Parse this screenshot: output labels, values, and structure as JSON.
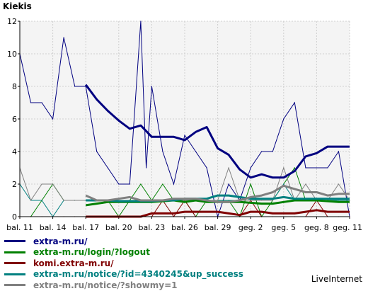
{
  "chart_data": {
    "type": "line",
    "title": "Kiekis",
    "xlabel": "",
    "ylabel": "",
    "ylim": [
      0,
      12
    ],
    "yticks": [
      0,
      2,
      4,
      6,
      8,
      10,
      12
    ],
    "grid": true,
    "legend_position": "bottom-left",
    "x_tick_labels": [
      "bal. 11",
      "bal. 14",
      "bal. 17",
      "bal. 20",
      "bal. 23",
      "bal. 26",
      "bal. 29",
      "geg. 2",
      "geg. 5",
      "geg. 8",
      "geg. 11"
    ],
    "x_tick_days": [
      0,
      3,
      6,
      9,
      12,
      15,
      18,
      21,
      24,
      27,
      30
    ],
    "series": [
      {
        "name": "extra-m.ru/",
        "color": "#000080",
        "daily_x": [
          0,
          1,
          2,
          3,
          4,
          5,
          6,
          7,
          8,
          9,
          10,
          11,
          11.5,
          12,
          13,
          14,
          15,
          16,
          17,
          18,
          19,
          20,
          21,
          22,
          23,
          24,
          25,
          26,
          27,
          28,
          29,
          30
        ],
        "daily_y": [
          10,
          7,
          7,
          6,
          11,
          8,
          8,
          4,
          3,
          2,
          2,
          12,
          3,
          8,
          4,
          2,
          5,
          4,
          3,
          0,
          2,
          1,
          3,
          4,
          4,
          6,
          7,
          3,
          3,
          3,
          4,
          0
        ],
        "smooth_x": [
          6,
          7,
          8,
          9,
          10,
          11,
          12,
          13,
          14,
          15,
          16,
          17,
          18,
          19,
          20,
          21,
          22,
          23,
          24,
          25,
          26,
          27,
          28,
          29,
          30
        ],
        "smooth_y": [
          8.1,
          7.2,
          6.5,
          5.9,
          5.4,
          5.6,
          4.9,
          4.9,
          4.9,
          4.7,
          5.2,
          5.5,
          4.2,
          3.8,
          2.9,
          2.4,
          2.6,
          2.4,
          2.4,
          2.8,
          3.7,
          3.9,
          4.3,
          4.3,
          4.3
        ]
      },
      {
        "name": "extra-m.ru/login/?logout",
        "color": "#008000",
        "daily_x": [
          0,
          1,
          2,
          3,
          4,
          5,
          6,
          7,
          8,
          9,
          10,
          11,
          12,
          13,
          14,
          15,
          16,
          17,
          18,
          19,
          20,
          21,
          22,
          23,
          24,
          25,
          26,
          27,
          28,
          29,
          30
        ],
        "daily_y": [
          0,
          0,
          1,
          2,
          1,
          1,
          1,
          1,
          1,
          0,
          1,
          2,
          1,
          2,
          1,
          1,
          0,
          1,
          1,
          1,
          0,
          2,
          0,
          1,
          2,
          3,
          1,
          1,
          1,
          1,
          1
        ],
        "smooth_x": [
          6,
          7,
          8,
          9,
          10,
          11,
          12,
          13,
          14,
          15,
          16,
          17,
          18,
          19,
          20,
          21,
          22,
          23,
          24,
          25,
          26,
          27,
          28,
          29,
          30
        ],
        "smooth_y": [
          0.7,
          0.8,
          0.9,
          0.9,
          0.9,
          0.9,
          0.9,
          0.95,
          1.0,
          0.9,
          1.0,
          0.9,
          0.9,
          0.9,
          0.9,
          0.85,
          0.8,
          0.8,
          0.9,
          1.0,
          1.0,
          1.0,
          0.95,
          0.9,
          0.9
        ]
      },
      {
        "name": "komi.extra-m.ru/",
        "color": "#800000",
        "daily_x": [
          0,
          1,
          2,
          3,
          4,
          5,
          6,
          7,
          8,
          9,
          10,
          11,
          12,
          13,
          14,
          15,
          16,
          17,
          18,
          19,
          20,
          21,
          22,
          23,
          24,
          25,
          26,
          27,
          28,
          29,
          30
        ],
        "daily_y": [
          0,
          0,
          0,
          0,
          0,
          0,
          0,
          0,
          0,
          0,
          0,
          0,
          0,
          1,
          0,
          1,
          0,
          0,
          0,
          0,
          0,
          1,
          0,
          0,
          0,
          0,
          0,
          1,
          0,
          0,
          0
        ],
        "smooth_x": [
          6,
          7,
          8,
          9,
          10,
          11,
          12,
          13,
          14,
          15,
          16,
          17,
          18,
          19,
          20,
          21,
          22,
          23,
          24,
          25,
          26,
          27,
          28,
          29,
          30
        ],
        "smooth_y": [
          0,
          0,
          0,
          0,
          0,
          0,
          0.2,
          0.2,
          0.2,
          0.3,
          0.3,
          0.3,
          0.3,
          0.2,
          0.1,
          0.3,
          0.3,
          0.2,
          0.2,
          0.2,
          0.3,
          0.4,
          0.3,
          0.3,
          0.3
        ]
      },
      {
        "name": "extra-m.ru/notice/?id=4340245&up_success",
        "color": "#008080",
        "daily_x": [
          0,
          1,
          2,
          3,
          4,
          5,
          6,
          7,
          8,
          9,
          10,
          11,
          12,
          13,
          14,
          15,
          16,
          17,
          18,
          19,
          20,
          21,
          22,
          23,
          24,
          25,
          26,
          27,
          28,
          29,
          30
        ],
        "daily_y": [
          2,
          1,
          1,
          0,
          1,
          1,
          1,
          1,
          1,
          1,
          1,
          1,
          1,
          1,
          1,
          1,
          1,
          1,
          1,
          1,
          1,
          1,
          1,
          1,
          2,
          1,
          1,
          1,
          1,
          1,
          1
        ],
        "smooth_x": [
          6,
          7,
          8,
          9,
          10,
          11,
          12,
          13,
          14,
          15,
          16,
          17,
          18,
          19,
          20,
          21,
          22,
          23,
          24,
          25,
          26,
          27,
          28,
          29,
          30
        ],
        "smooth_y": [
          1.0,
          1.0,
          1.0,
          0.95,
          0.95,
          0.95,
          0.95,
          1.0,
          1.0,
          1.1,
          1.1,
          1.1,
          1.3,
          1.3,
          1.2,
          1.1,
          1.1,
          1.1,
          1.2,
          1.1,
          1.1,
          1.1,
          1.1,
          1.1,
          1.1
        ]
      },
      {
        "name": "extra-m.ru/notice/?showmy=1",
        "color": "#808080",
        "daily_x": [
          0,
          1,
          2,
          3,
          4,
          5,
          6,
          7,
          8,
          9,
          10,
          11,
          12,
          13,
          14,
          15,
          16,
          17,
          18,
          19,
          20,
          21,
          22,
          23,
          24,
          25,
          26,
          27,
          28,
          29,
          30
        ],
        "daily_y": [
          3,
          1,
          2,
          2,
          1,
          1,
          1,
          1,
          1,
          1,
          1,
          1,
          1,
          1,
          1,
          1,
          1,
          1,
          1,
          3,
          1,
          1,
          1,
          1,
          3,
          1,
          2,
          1,
          1,
          2,
          1
        ],
        "smooth_x": [
          6,
          7,
          8,
          9,
          10,
          11,
          12,
          13,
          14,
          15,
          16,
          17,
          18,
          19,
          20,
          21,
          22,
          23,
          24,
          25,
          26,
          27,
          28,
          29,
          30
        ],
        "smooth_y": [
          1.3,
          1.0,
          1.0,
          1.1,
          1.2,
          1.0,
          1.0,
          1.0,
          1.1,
          1.1,
          1.1,
          1.0,
          0.9,
          0.9,
          1.0,
          1.2,
          1.3,
          1.5,
          1.9,
          1.7,
          1.5,
          1.5,
          1.3,
          1.4,
          1.4
        ]
      }
    ]
  },
  "brand": "LiveInternet"
}
